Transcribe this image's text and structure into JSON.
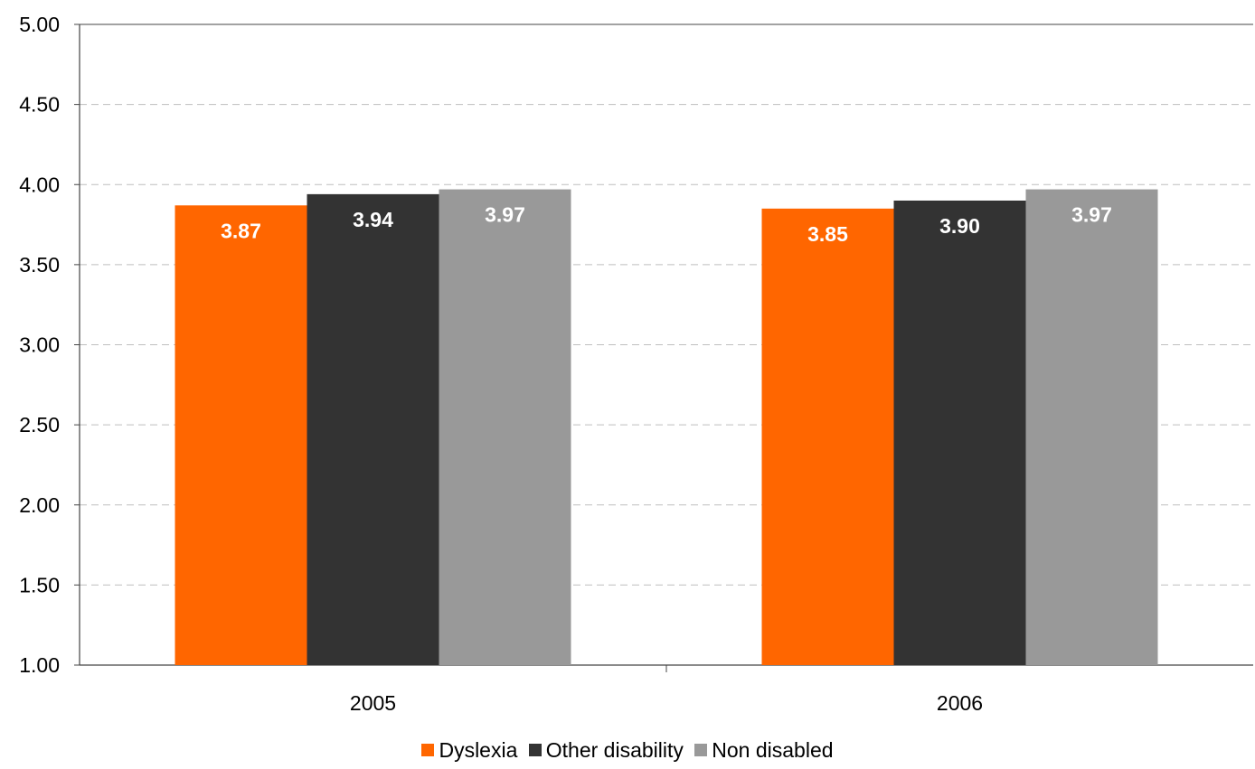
{
  "chart_data": {
    "type": "bar",
    "title": "",
    "xlabel": "",
    "ylabel": "",
    "categories": [
      "2005",
      "2006"
    ],
    "series": [
      {
        "name": "Dyslexia",
        "color": "#ff6600",
        "values": [
          3.87,
          3.85
        ],
        "labels": [
          "3.87",
          "3.85"
        ]
      },
      {
        "name": "Other disability",
        "color": "#333333",
        "values": [
          3.94,
          3.9
        ],
        "labels": [
          "3.94",
          "3.90"
        ]
      },
      {
        "name": "Non disabled",
        "color": "#999999",
        "values": [
          3.97,
          3.97
        ],
        "labels": [
          "3.97",
          "3.97"
        ]
      }
    ],
    "ylim": [
      1.0,
      5.0
    ],
    "yticks": [
      "1.00",
      "1.50",
      "2.00",
      "2.50",
      "3.00",
      "3.50",
      "4.00",
      "4.50",
      "5.00"
    ],
    "grid": true,
    "legend_position": "bottom"
  }
}
